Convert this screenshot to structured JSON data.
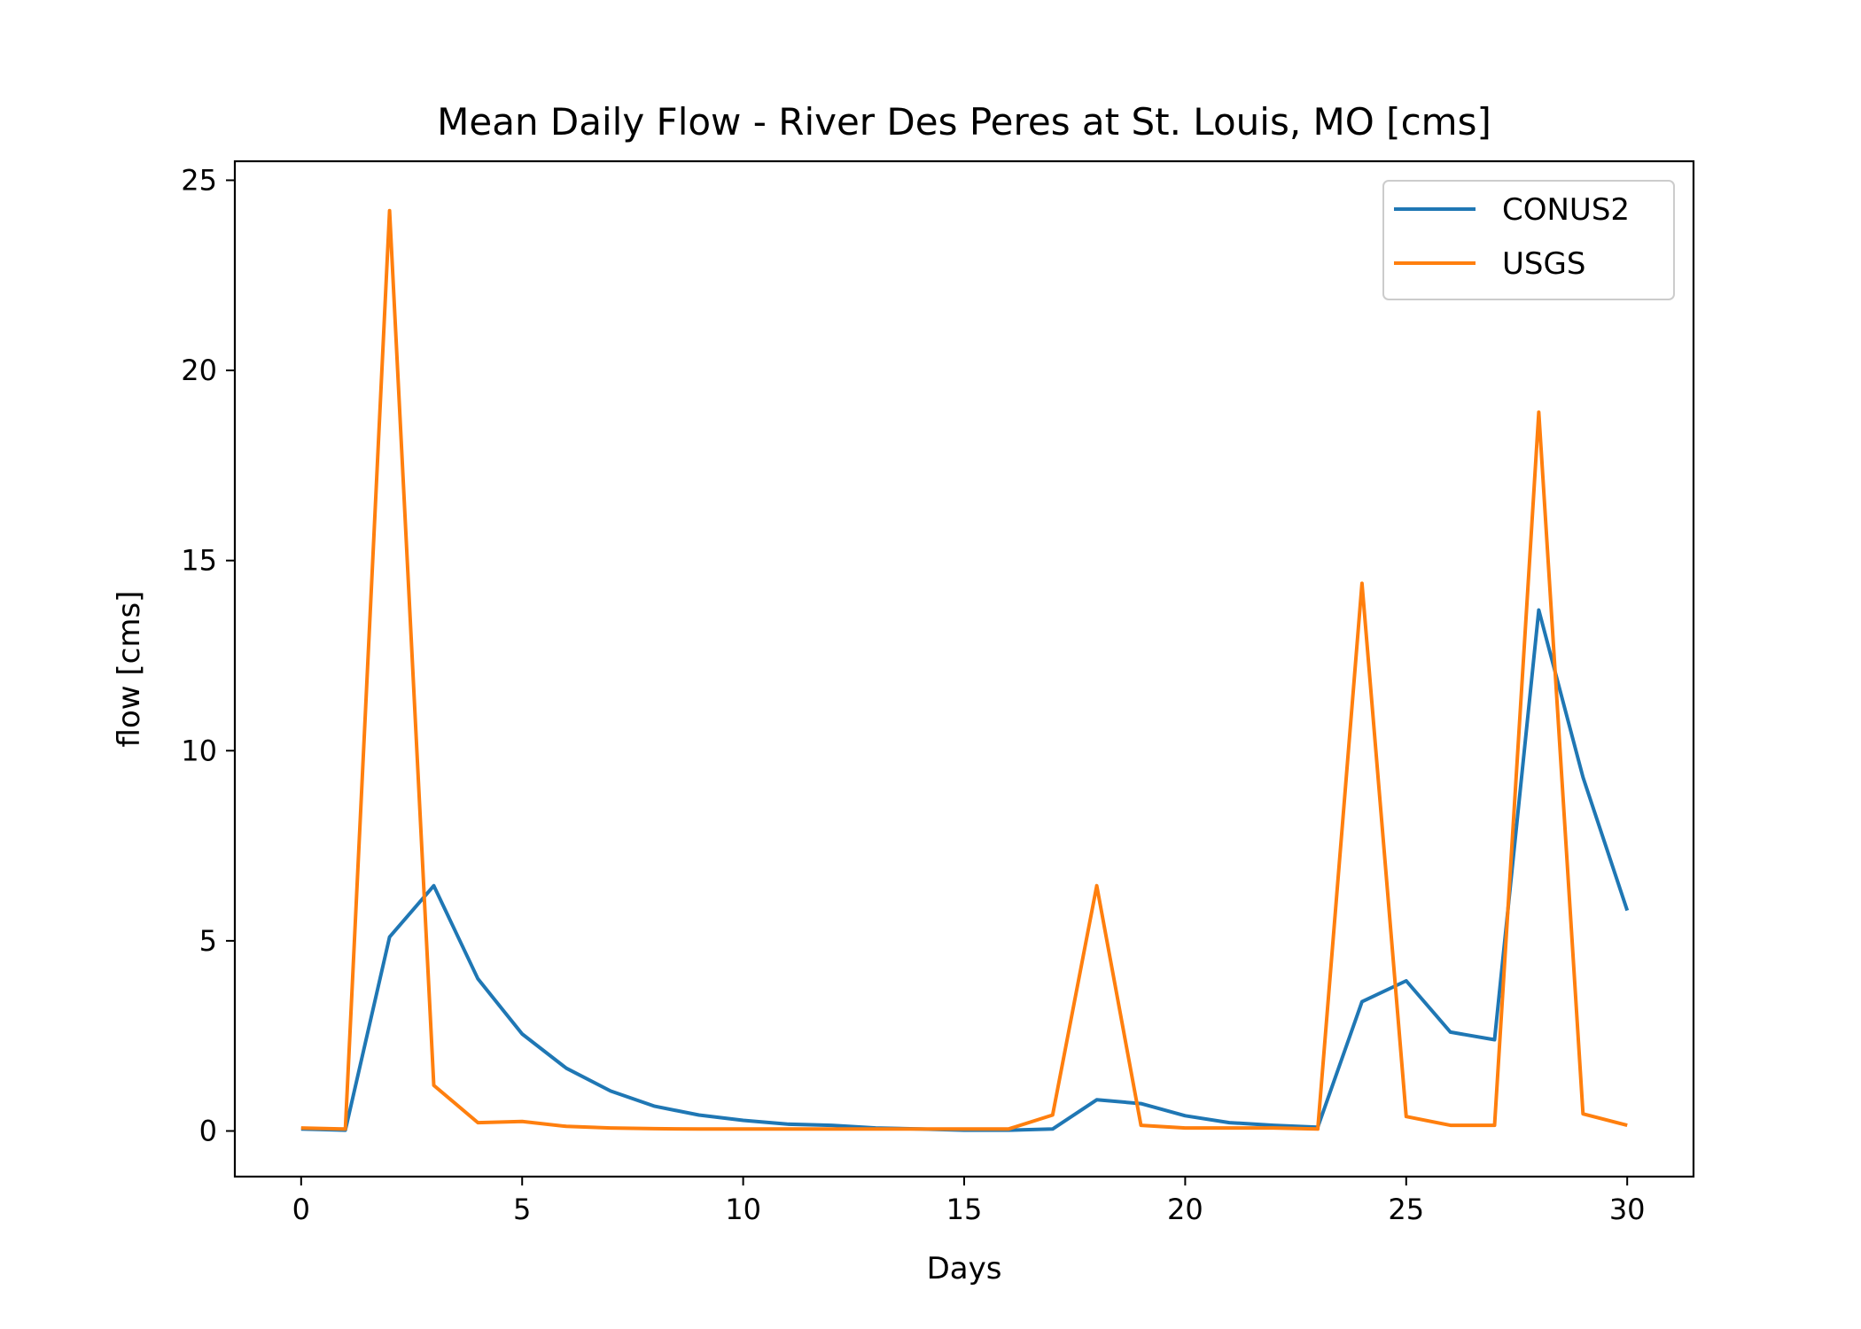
{
  "chart_data": {
    "type": "line",
    "title": "Mean Daily Flow - River Des Peres at St. Louis, MO [cms]",
    "xlabel": "Days",
    "ylabel": "flow [cms]",
    "xlim": [
      -1.5,
      31.5
    ],
    "ylim": [
      -1.2,
      25.5
    ],
    "xticks": [
      0,
      5,
      10,
      15,
      20,
      25,
      30
    ],
    "yticks": [
      0,
      5,
      10,
      15,
      20,
      25
    ],
    "grid": false,
    "legend_position": "top-right",
    "x": [
      0,
      1,
      2,
      3,
      4,
      5,
      6,
      7,
      8,
      9,
      10,
      11,
      12,
      13,
      14,
      15,
      16,
      17,
      18,
      19,
      20,
      21,
      22,
      23,
      24,
      25,
      26,
      27,
      28,
      29,
      30
    ],
    "series": [
      {
        "name": "CONUS2",
        "color": "#1f77b4",
        "values": [
          0.05,
          0.02,
          5.1,
          6.45,
          4.0,
          2.55,
          1.65,
          1.05,
          0.65,
          0.42,
          0.28,
          0.18,
          0.15,
          0.08,
          0.05,
          0.02,
          0.02,
          0.05,
          0.82,
          0.72,
          0.4,
          0.22,
          0.15,
          0.1,
          3.4,
          3.95,
          2.6,
          2.4,
          13.7,
          9.3,
          5.8
        ]
      },
      {
        "name": "USGS",
        "color": "#ff7f0e",
        "values": [
          0.08,
          0.05,
          24.2,
          1.2,
          0.22,
          0.25,
          0.12,
          0.08,
          0.06,
          0.05,
          0.05,
          0.05,
          0.05,
          0.05,
          0.05,
          0.05,
          0.05,
          0.42,
          6.45,
          0.15,
          0.08,
          0.08,
          0.08,
          0.05,
          14.4,
          0.38,
          0.15,
          0.15,
          18.9,
          0.45,
          0.15
        ]
      }
    ]
  }
}
